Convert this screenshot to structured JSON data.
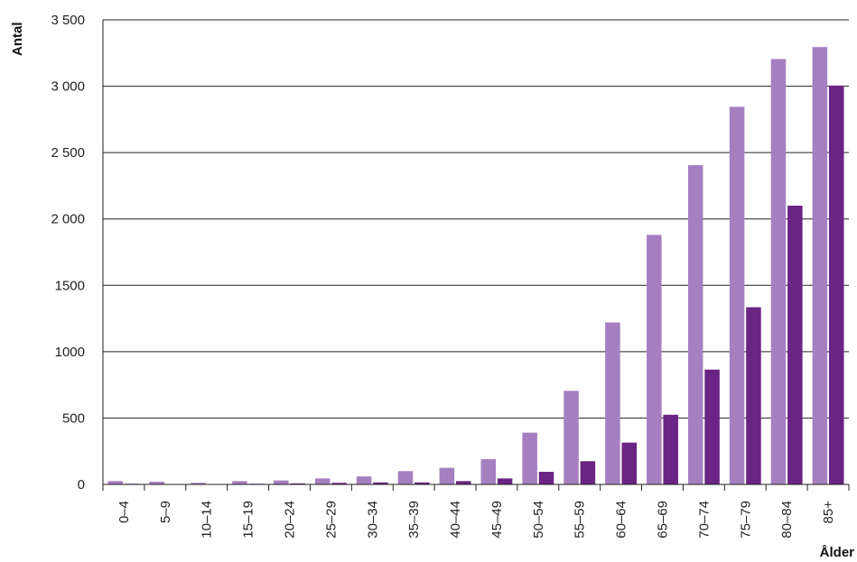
{
  "chart_data": {
    "type": "bar",
    "title": "",
    "xlabel": "Ålder",
    "ylabel": "Antal",
    "ylim": [
      0,
      3500
    ],
    "yticks": [
      0,
      500,
      1000,
      1500,
      2000,
      2500,
      3000,
      3500
    ],
    "ytick_labels": [
      "0",
      "500",
      "1000",
      "1500",
      "2 000",
      "2 500",
      "3 000",
      "3 500"
    ],
    "grid": true,
    "legend": "none",
    "categories": [
      "0–4",
      "5–9",
      "10–14",
      "15–19",
      "20–24",
      "25–29",
      "30–34",
      "35–39",
      "40–44",
      "45–49",
      "50–54",
      "55–59",
      "60–64",
      "65–69",
      "70–74",
      "75–79",
      "80–84",
      "85+"
    ],
    "series": [
      {
        "color": "#a67fc0",
        "values": [
          25,
          20,
          12,
          25,
          30,
          45,
          60,
          100,
          125,
          190,
          390,
          705,
          1220,
          1880,
          2405,
          2845,
          3205,
          3295
        ]
      },
      {
        "color": "#6a2483",
        "values": [
          5,
          3,
          3,
          5,
          8,
          12,
          15,
          15,
          25,
          45,
          95,
          175,
          315,
          525,
          865,
          1335,
          2100,
          3005
        ]
      }
    ]
  }
}
